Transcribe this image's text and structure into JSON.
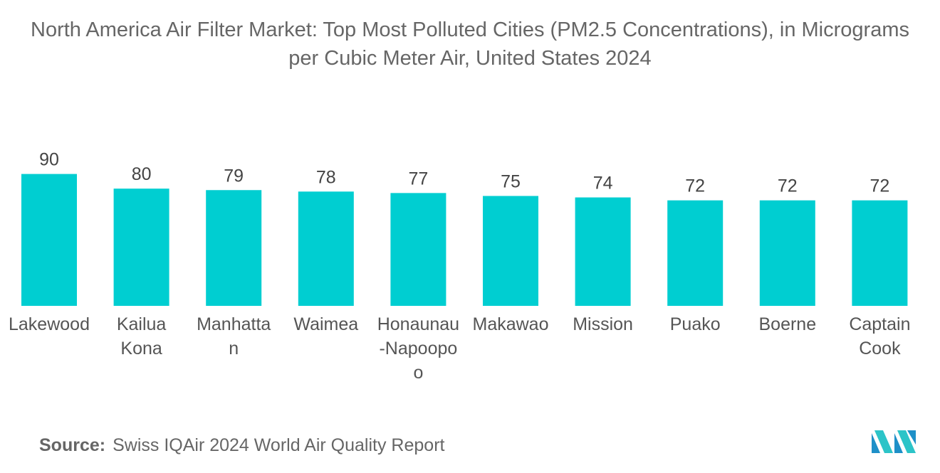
{
  "chart_data": {
    "type": "bar",
    "title": "North America Air Filter Market: Top Most Polluted Cities (PM2.5 Concentrations), in Micrograms per Cubic Meter Air, United States 2024",
    "categories": [
      [
        "Lakewood"
      ],
      [
        "Kailua",
        "Kona"
      ],
      [
        "Manhatta",
        "n"
      ],
      [
        "Waimea"
      ],
      [
        "Honaunau",
        "-Napoopo",
        "o"
      ],
      [
        "Makawao"
      ],
      [
        "Mission"
      ],
      [
        "Puako"
      ],
      [
        "Boerne"
      ],
      [
        "Captain",
        "Cook"
      ]
    ],
    "values": [
      90,
      80,
      79,
      78,
      77,
      75,
      74,
      72,
      72,
      72
    ],
    "bar_color": "#00CED1",
    "grid": false,
    "legend": "none"
  },
  "source": {
    "label": "Source:",
    "text": "Swiss IQAir 2024 World Air Quality Report"
  },
  "logo": {
    "icon": "mordor-intelligence-logo",
    "colors": [
      "#1E90C8",
      "#2CC4C8"
    ]
  }
}
